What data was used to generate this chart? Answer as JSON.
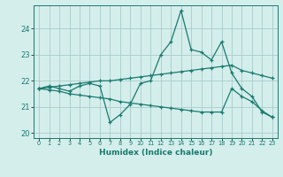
{
  "xlabel": "Humidex (Indice chaleur)",
  "background_color": "#d4eeec",
  "grid_color": "#a8ccca",
  "line_color": "#1a7a6e",
  "xlim": [
    -0.5,
    23.5
  ],
  "ylim": [
    19.8,
    24.9
  ],
  "yticks": [
    20,
    21,
    22,
    23,
    24
  ],
  "xtick_labels": [
    "0",
    "1",
    "2",
    "3",
    "4",
    "5",
    "6",
    "7",
    "8",
    "9",
    "10",
    "11",
    "12",
    "13",
    "14",
    "15",
    "16",
    "17",
    "18",
    "19",
    "20",
    "21",
    "22",
    "23"
  ],
  "series": {
    "main": [
      21.7,
      21.8,
      21.7,
      21.6,
      21.8,
      21.9,
      21.8,
      20.4,
      20.7,
      21.1,
      21.9,
      22.0,
      23.0,
      23.5,
      24.7,
      23.2,
      23.1,
      22.8,
      23.5,
      22.3,
      21.7,
      21.4,
      20.8,
      20.6
    ],
    "upper": [
      21.7,
      21.75,
      21.8,
      21.85,
      21.9,
      21.95,
      22.0,
      22.0,
      22.05,
      22.1,
      22.15,
      22.2,
      22.25,
      22.3,
      22.35,
      22.4,
      22.45,
      22.5,
      22.55,
      22.6,
      22.4,
      22.3,
      22.2,
      22.1
    ],
    "lower": [
      21.7,
      21.65,
      21.6,
      21.5,
      21.45,
      21.4,
      21.35,
      21.3,
      21.2,
      21.15,
      21.1,
      21.05,
      21.0,
      20.95,
      20.9,
      20.85,
      20.8,
      20.8,
      20.8,
      21.7,
      21.4,
      21.2,
      20.85,
      20.6
    ]
  }
}
